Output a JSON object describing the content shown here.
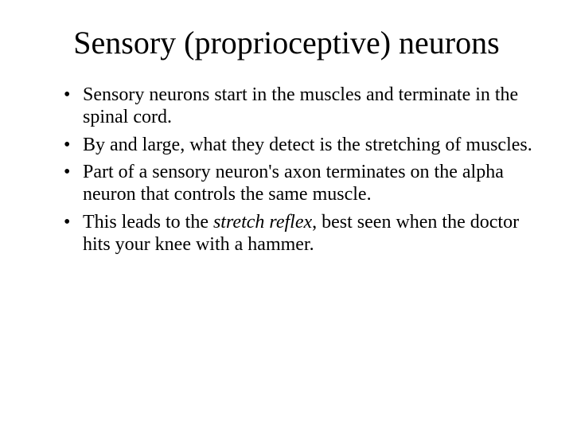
{
  "title": "Sensory (proprioceptive) neurons",
  "bullets": [
    {
      "text": "Sensory neurons start in the muscles and terminate in the spinal cord."
    },
    {
      "text": "By and large, what they detect is the stretching of muscles."
    },
    {
      "text": "Part of a sensory neuron's axon terminates on the alpha neuron that controls the same muscle."
    },
    {
      "prefix": "This leads to the ",
      "italic": "stretch reflex",
      "suffix": ", best seen when the doctor hits your knee with a hammer."
    }
  ],
  "style": {
    "background_color": "#ffffff",
    "text_color": "#000000",
    "title_fontsize": 40,
    "body_fontsize": 24,
    "font_family": "Times New Roman"
  }
}
